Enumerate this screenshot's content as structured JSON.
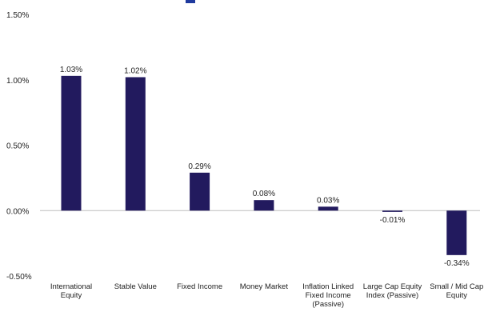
{
  "chart_data": {
    "type": "bar",
    "title": "",
    "xlabel": "",
    "ylabel": "",
    "ylim": [
      -0.5,
      1.5
    ],
    "y_ticks": [
      "1.50%",
      "1.00%",
      "0.50%",
      "0.00%",
      "-0.50%"
    ],
    "y_tick_values": [
      1.5,
      1.0,
      0.5,
      0.0,
      -0.5
    ],
    "grid": false,
    "legend": "none",
    "bar_color": "#221a5e",
    "categories": [
      [
        "International",
        "Equity"
      ],
      [
        "Stable Value"
      ],
      [
        "Fixed Income"
      ],
      [
        "Money Market"
      ],
      [
        "Inflation Linked",
        "Fixed Income",
        "(Passive)"
      ],
      [
        "Large Cap Equity",
        "Index (Passive)"
      ],
      [
        "Small / Mid Cap",
        "Equity"
      ]
    ],
    "values": [
      1.03,
      1.02,
      0.29,
      0.08,
      0.03,
      -0.01,
      -0.34
    ],
    "data_labels": [
      "1.03%",
      "1.02%",
      "0.29%",
      "0.08%",
      "0.03%",
      "-0.01%",
      "-0.34%"
    ]
  }
}
